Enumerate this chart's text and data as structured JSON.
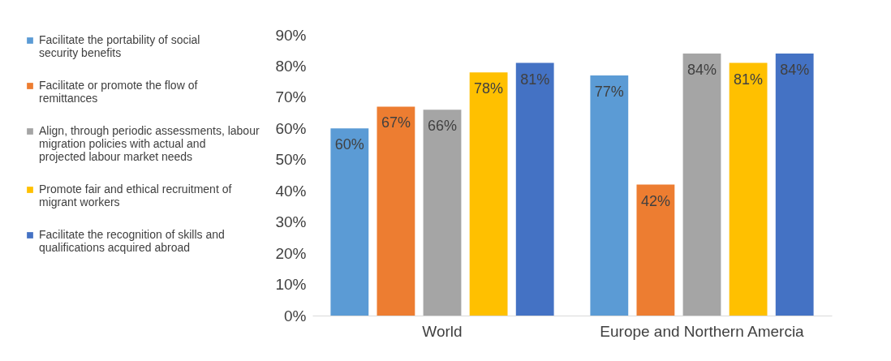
{
  "chart_data": {
    "type": "bar",
    "categories": [
      "World",
      "Europe and Northern Amercia"
    ],
    "series": [
      {
        "name": "Facilitate the portability of social security benefits",
        "color": "#5b9bd5",
        "values": [
          60,
          77
        ],
        "value_labels": [
          "60%",
          "77%"
        ]
      },
      {
        "name": "Facilitate or promote the flow of remittances",
        "color": "#ed7d31",
        "values": [
          67,
          42
        ],
        "value_labels": [
          "67%",
          "42%"
        ]
      },
      {
        "name": "Align, through periodic assessments, labour migration policies with actual and projected labour market needs",
        "color": "#a5a5a5",
        "values": [
          66,
          84
        ],
        "value_labels": [
          "66%",
          "84%"
        ]
      },
      {
        "name": "Promote fair and ethical recruitment of migrant workers",
        "color": "#ffc000",
        "values": [
          78,
          81
        ],
        "value_labels": [
          "78%",
          "81%"
        ]
      },
      {
        "name": "Facilitate the recognition of skills and qualifications acquired abroad",
        "color": "#4472c4",
        "values": [
          81,
          84
        ],
        "value_labels": [
          "81%",
          "84%"
        ]
      }
    ],
    "ylim": [
      0,
      90
    ],
    "yticks": [
      {
        "value": 0,
        "label": "0%"
      },
      {
        "value": 10,
        "label": "10%"
      },
      {
        "value": 20,
        "label": "20%"
      },
      {
        "value": 30,
        "label": "30%"
      },
      {
        "value": 40,
        "label": "40%"
      },
      {
        "value": 50,
        "label": "50%"
      },
      {
        "value": 60,
        "label": "60%"
      },
      {
        "value": 70,
        "label": "70%"
      },
      {
        "value": 80,
        "label": "80%"
      },
      {
        "value": 90,
        "label": "90%"
      }
    ],
    "grid": false,
    "legend": "left"
  }
}
